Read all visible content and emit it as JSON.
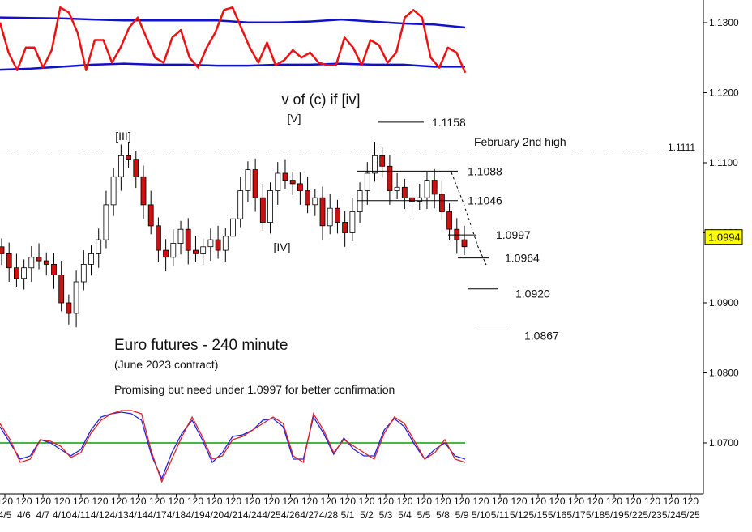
{
  "chart_data": {
    "type": "candlestick",
    "title": "Euro futures - 240 minute",
    "subtitle": "(June 2023 contract)",
    "note": "Promising but need under 1.0997 for better ccnfirmation",
    "ylim": [
      1.063,
      1.133
    ],
    "y_ticks": [
      "1.1300",
      "1.1200",
      "1.1100",
      "1.1000",
      "1.0900",
      "1.0800",
      "1.0700"
    ],
    "current_price": "1.0994",
    "x_tick_labels": [
      "4/5",
      "4/6",
      "4/7",
      "4/10",
      "4/11",
      "4/12",
      "4/13",
      "4/14",
      "4/17",
      "4/18",
      "4/19",
      "4/20",
      "4/21",
      "4/24",
      "4/25",
      "4/26",
      "4/27",
      "4/28",
      "5/1",
      "5/2",
      "5/3",
      "5/4",
      "5/5",
      "5/8",
      "5/9",
      "5/10",
      "5/11",
      "5/12",
      "5/15",
      "5/16",
      "5/17",
      "5/18",
      "5/19",
      "5/22",
      "5/23",
      "5/24",
      "5/25"
    ],
    "x_tick_top": "120",
    "close_path": [
      1.097,
      1.095,
      1.0935,
      1.095,
      1.0965,
      1.096,
      1.0955,
      1.094,
      1.09,
      1.0885,
      1.093,
      1.0955,
      1.097,
      1.099,
      1.104,
      1.108,
      1.111,
      1.1105,
      1.108,
      1.104,
      1.101,
      1.0975,
      1.0965,
      1.0985,
      1.1005,
      1.0975,
      1.097,
      1.098,
      1.099,
      1.0975,
      1.0995,
      1.102,
      1.106,
      1.109,
      1.105,
      1.1015,
      1.106,
      1.1085,
      1.1075,
      1.107,
      1.106,
      1.104,
      1.105,
      1.101,
      1.1035,
      1.1015,
      1.1,
      1.103,
      1.106,
      1.1085,
      1.111,
      1.1095,
      1.106,
      1.1065,
      1.105,
      1.1045,
      1.105,
      1.1075,
      1.1055,
      1.103,
      1.1005,
      1.099,
      1.098
    ],
    "dashed_level": {
      "value": 1.1111,
      "label": "1.1111",
      "annotation": "February 2nd high"
    },
    "targets": [
      {
        "value": 1.1158,
        "label": "1.1158"
      },
      {
        "value": 1.1088,
        "label": "1.1088"
      },
      {
        "value": 1.1046,
        "label": "1.1046"
      },
      {
        "value": 1.0997,
        "label": "1.0997"
      },
      {
        "value": 1.0964,
        "label": "1.0964"
      },
      {
        "value": 1.092,
        "label": "1.0920"
      },
      {
        "value": 1.0867,
        "label": "1.0867"
      }
    ],
    "wave_labels": [
      {
        "text": "[III]",
        "near_value": 1.1116
      },
      {
        "text": "[V]",
        "near_value": 1.1126
      },
      {
        "text": "[IV]",
        "near_value": 1.1
      },
      {
        "text": "v of (c) if [iv]"
      }
    ],
    "upper_indicator": {
      "band_upper": [
        1.2,
        1.19,
        1.18,
        1.16,
        1.14,
        1.14,
        1.14,
        1.14,
        1.1,
        1.1,
        1.12,
        1.16,
        1.12,
        1.08,
        1.06,
        1.0
      ],
      "band_lower": [
        0.16,
        0.18,
        0.22,
        0.26,
        0.28,
        0.26,
        0.26,
        0.24,
        0.24,
        0.26,
        0.26,
        0.28,
        0.26,
        0.26,
        0.22,
        0.22
      ],
      "oscillator": [
        1.1,
        0.5,
        0.15,
        0.6,
        0.6,
        0.2,
        0.55,
        1.4,
        1.3,
        0.9,
        0.15,
        0.75,
        0.75,
        0.3,
        0.6,
        1.0,
        1.2,
        0.8,
        0.4,
        0.3,
        0.8,
        0.95,
        0.4,
        0.2,
        0.6,
        0.9,
        1.35,
        1.4,
        1.0,
        0.6,
        0.3,
        0.7,
        0.25,
        0.35,
        0.55,
        0.4,
        0.5,
        0.3,
        0.25,
        0.25,
        0.8,
        0.6,
        0.25,
        0.75,
        0.65,
        0.3,
        0.5,
        1.2,
        1.35,
        1.2,
        0.4,
        0.2,
        0.6,
        0.5,
        0.1
      ]
    },
    "lower_indicator": {
      "line_level": 0.0,
      "red": [
        0.6,
        0.1,
        -0.6,
        -0.5,
        0.1,
        0.05,
        -0.1,
        -0.45,
        -0.3,
        0.3,
        0.7,
        0.9,
        1.0,
        1.0,
        0.9,
        -0.3,
        -1.2,
        -0.5,
        0.2,
        0.8,
        0.2,
        -0.5,
        -0.4,
        0.1,
        0.2,
        0.4,
        0.6,
        0.8,
        0.6,
        -0.4,
        -0.6,
        0.9,
        0.4,
        -0.3,
        0.1,
        -0.1,
        -0.3,
        -0.5,
        0.3,
        0.8,
        0.6,
        0.05,
        -0.5,
        -0.3,
        0.1,
        -0.5,
        -0.6
      ],
      "blue": [
        0.5,
        0.0,
        -0.5,
        -0.4,
        0.1,
        0.0,
        -0.2,
        -0.4,
        -0.2,
        0.4,
        0.8,
        0.9,
        0.95,
        0.9,
        0.7,
        -0.4,
        -1.1,
        -0.3,
        0.3,
        0.7,
        0.1,
        -0.6,
        -0.3,
        0.2,
        0.25,
        0.4,
        0.7,
        0.75,
        0.5,
        -0.5,
        -0.5,
        0.8,
        0.3,
        -0.35,
        0.15,
        -0.2,
        -0.4,
        -0.4,
        0.4,
        0.75,
        0.5,
        -0.05,
        -0.5,
        -0.2,
        0.0,
        -0.4,
        -0.5
      ]
    },
    "colors": {
      "bull": "#ffffff",
      "bear": "#cc1111",
      "band": "#1111cc",
      "osc": "#ee1111",
      "signal": "#119911",
      "price_box": "#ffff00"
    },
    "grid": false
  }
}
